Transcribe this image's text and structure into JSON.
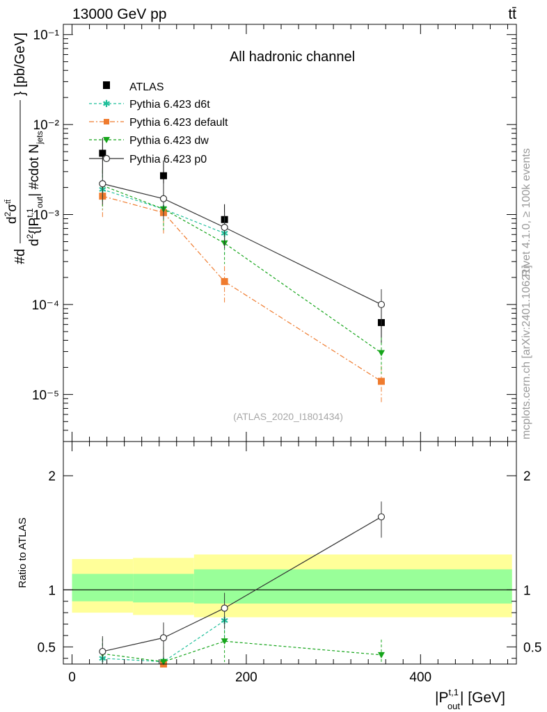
{
  "header": {
    "energy": "13000 GeV pp",
    "process": "tt̄"
  },
  "side": {
    "rivet": "Rivet 4.1.0, ≥ 100k events",
    "mcplots": "mcplots.cern.ch [arXiv:2401.10621]"
  },
  "chart_data": [
    {
      "type": "line",
      "panel": "main",
      "title": "All hadronic channel",
      "analysis_tag": "(ATLAS_2020_I1801434)",
      "ylabel": "#d d²σ^{tt̄} / d²{|P^{t,1}_out| #cdot N_jets} [pb/GeV]",
      "yscale": "log",
      "ylim": [
        3e-06,
        0.13
      ],
      "xlim": [
        -10,
        510
      ],
      "y_tick_labels": [
        "10⁻⁵",
        "10⁻⁴",
        "10⁻³",
        "10⁻²",
        "10⁻¹"
      ],
      "x": [
        35,
        105,
        175,
        355
      ],
      "series": [
        {
          "name": "ATLAS",
          "color": "#000000",
          "marker": "square",
          "values": [
            0.0048,
            0.0027,
            0.00088,
            6.3e-05
          ]
        },
        {
          "name": "Pythia 6.423 d6t",
          "color": "#1fbf9a",
          "marker": "star",
          "dash": "4,3",
          "values": [
            0.0019,
            0.00115,
            0.00062,
            null
          ]
        },
        {
          "name": "Pythia 6.423 default",
          "color": "#ef7b2e",
          "marker": "square",
          "dash": "7,3,2,3",
          "values": [
            0.0016,
            0.00105,
            0.00018,
            1.4e-05
          ]
        },
        {
          "name": "Pythia 6.423 dw",
          "color": "#15a51a",
          "marker": "triangle-down",
          "dash": "4,3",
          "values": [
            0.0021,
            0.00115,
            0.00048,
            2.9e-05
          ]
        },
        {
          "name": "Pythia 6.423 p0",
          "color": "#333333",
          "marker": "circle",
          "values": [
            0.0022,
            0.0015,
            0.00072,
            0.0001
          ]
        }
      ]
    },
    {
      "type": "line",
      "panel": "ratio",
      "ylabel": "Ratio to ATLAS",
      "xlabel": "|P^{t,1}_out| [GeV]",
      "ylim": [
        0.35,
        2.3
      ],
      "xlim": [
        -10,
        510
      ],
      "x_tick_labels": [
        "0",
        "200",
        "400"
      ],
      "y_tick_labels": [
        "0.5",
        "1",
        "2"
      ],
      "bands": [
        {
          "x_from": 0,
          "x_to": 70,
          "stat_low": 0.9,
          "stat_high": 1.14,
          "total_low": 0.8,
          "total_high": 1.27
        },
        {
          "x_from": 70,
          "x_to": 140,
          "stat_low": 0.89,
          "stat_high": 1.14,
          "total_low": 0.78,
          "total_high": 1.28
        },
        {
          "x_from": 140,
          "x_to": 505,
          "stat_low": 0.88,
          "stat_high": 1.18,
          "total_low": 0.76,
          "total_high": 1.31
        }
      ],
      "x": [
        35,
        105,
        175,
        355
      ],
      "series": [
        {
          "name": "Pythia 6.423 d6t",
          "color": "#1fbf9a",
          "marker": "star",
          "dash": "4,3",
          "values": [
            0.4,
            0.37,
            0.73,
            null
          ]
        },
        {
          "name": "Pythia 6.423 default",
          "color": "#ef7b2e",
          "marker": "square",
          "dash": "7,3,2,3",
          "values": [
            null,
            0.35,
            null,
            null
          ]
        },
        {
          "name": "Pythia 6.423 dw",
          "color": "#15a51a",
          "marker": "triangle-down",
          "dash": "4,3",
          "values": [
            0.44,
            0.37,
            0.55,
            0.43
          ]
        },
        {
          "name": "Pythia 6.423 p0",
          "color": "#333333",
          "marker": "circle",
          "values": [
            0.46,
            0.58,
            0.84,
            1.64
          ]
        }
      ]
    }
  ]
}
